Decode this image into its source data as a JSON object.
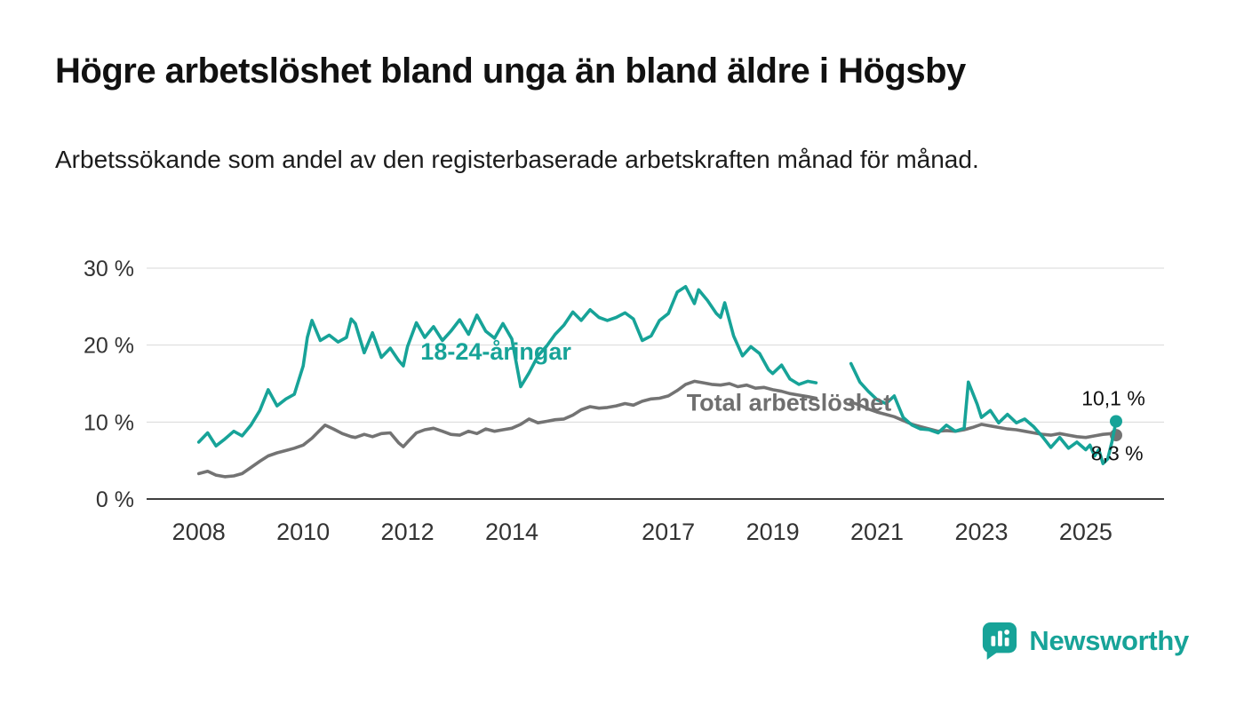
{
  "page": {
    "title": "Högre arbetslöshet bland unga än bland äldre i Högsby",
    "subtitle": "Arbetssökande som andel av den registerbaserade arbetskraften månad för månad."
  },
  "footer": {
    "brand": "Newsworthy",
    "brand_color": "#17a398"
  },
  "chart_data": {
    "type": "line",
    "title": "Högre arbetslöshet bland unga än bland äldre i Högsby",
    "subtitle": "Arbetssökande som andel av den registerbaserade arbetskraften månad för månad.",
    "x_domain": [
      2007.0,
      2026.5
    ],
    "y_domain": [
      0,
      30
    ],
    "grid": true,
    "y_ticks": [
      0,
      10,
      20,
      30
    ],
    "y_tick_labels": [
      "0 %",
      "10 %",
      "20 %",
      "30 %"
    ],
    "x_ticks": [
      2008,
      2010,
      2012,
      2014,
      2017,
      2019,
      2021,
      2023,
      2025
    ],
    "x_tick_labels": [
      "2008",
      "2010",
      "2012",
      "2014",
      "2017",
      "2019",
      "2021",
      "2023",
      "2025"
    ],
    "colors": {
      "youth": "#17a398",
      "total": "#737373",
      "grid": "#d9d9d9",
      "axis": "#3f3f3f",
      "tick_text": "#333333"
    },
    "series": [
      {
        "key": "total",
        "name": "Total arbetslöshet",
        "color": "#737373",
        "end_value_label": "8,3 %",
        "points": [
          [
            2008.0,
            3.3
          ],
          [
            2008.17,
            3.6
          ],
          [
            2008.33,
            3.1
          ],
          [
            2008.5,
            2.9
          ],
          [
            2008.67,
            3.0
          ],
          [
            2008.83,
            3.3
          ],
          [
            2009.0,
            4.1
          ],
          [
            2009.17,
            4.9
          ],
          [
            2009.33,
            5.6
          ],
          [
            2009.5,
            6.0
          ],
          [
            2009.67,
            6.3
          ],
          [
            2009.83,
            6.6
          ],
          [
            2010.0,
            7.0
          ],
          [
            2010.17,
            7.9
          ],
          [
            2010.33,
            9.0
          ],
          [
            2010.42,
            9.6
          ],
          [
            2010.58,
            9.1
          ],
          [
            2010.75,
            8.5
          ],
          [
            2010.92,
            8.1
          ],
          [
            2011.0,
            8.0
          ],
          [
            2011.17,
            8.4
          ],
          [
            2011.33,
            8.1
          ],
          [
            2011.5,
            8.5
          ],
          [
            2011.67,
            8.6
          ],
          [
            2011.83,
            7.3
          ],
          [
            2011.92,
            6.8
          ],
          [
            2012.0,
            7.4
          ],
          [
            2012.17,
            8.6
          ],
          [
            2012.33,
            9.0
          ],
          [
            2012.5,
            9.2
          ],
          [
            2012.67,
            8.8
          ],
          [
            2012.83,
            8.4
          ],
          [
            2013.0,
            8.3
          ],
          [
            2013.17,
            8.8
          ],
          [
            2013.33,
            8.5
          ],
          [
            2013.5,
            9.1
          ],
          [
            2013.67,
            8.8
          ],
          [
            2013.83,
            9.0
          ],
          [
            2014.0,
            9.2
          ],
          [
            2014.17,
            9.7
          ],
          [
            2014.33,
            10.4
          ],
          [
            2014.5,
            9.9
          ],
          [
            2014.67,
            10.1
          ],
          [
            2014.83,
            10.3
          ],
          [
            2015.0,
            10.4
          ],
          [
            2015.17,
            10.9
          ],
          [
            2015.33,
            11.6
          ],
          [
            2015.5,
            12.0
          ],
          [
            2015.67,
            11.8
          ],
          [
            2015.83,
            11.9
          ],
          [
            2016.0,
            12.1
          ],
          [
            2016.17,
            12.4
          ],
          [
            2016.33,
            12.2
          ],
          [
            2016.5,
            12.7
          ],
          [
            2016.67,
            13.0
          ],
          [
            2016.83,
            13.1
          ],
          [
            2017.0,
            13.4
          ],
          [
            2017.17,
            14.1
          ],
          [
            2017.33,
            14.9
          ],
          [
            2017.5,
            15.3
          ],
          [
            2017.67,
            15.1
          ],
          [
            2017.83,
            14.9
          ],
          [
            2018.0,
            14.8
          ],
          [
            2018.17,
            15.0
          ],
          [
            2018.33,
            14.6
          ],
          [
            2018.5,
            14.8
          ],
          [
            2018.67,
            14.4
          ],
          [
            2018.83,
            14.5
          ],
          [
            2019.0,
            14.2
          ],
          [
            2019.17,
            14.0
          ],
          [
            2019.33,
            13.7
          ],
          [
            2019.5,
            13.5
          ],
          [
            2019.67,
            13.3
          ],
          [
            2019.83,
            13.1
          ],
          [
            2020.0,
            null
          ],
          [
            2020.17,
            null
          ],
          [
            2020.33,
            null
          ],
          [
            2020.5,
            12.6
          ],
          [
            2020.67,
            12.2
          ],
          [
            2020.83,
            11.7
          ],
          [
            2021.0,
            11.3
          ],
          [
            2021.17,
            11.0
          ],
          [
            2021.33,
            10.7
          ],
          [
            2021.5,
            10.2
          ],
          [
            2021.67,
            9.7
          ],
          [
            2021.83,
            9.4
          ],
          [
            2022.0,
            9.1
          ],
          [
            2022.17,
            8.8
          ],
          [
            2022.33,
            8.9
          ],
          [
            2022.5,
            8.8
          ],
          [
            2022.67,
            9.0
          ],
          [
            2022.83,
            9.3
          ],
          [
            2023.0,
            9.7
          ],
          [
            2023.17,
            9.5
          ],
          [
            2023.33,
            9.3
          ],
          [
            2023.5,
            9.1
          ],
          [
            2023.67,
            9.0
          ],
          [
            2023.83,
            8.8
          ],
          [
            2024.0,
            8.6
          ],
          [
            2024.17,
            8.4
          ],
          [
            2024.33,
            8.3
          ],
          [
            2024.5,
            8.5
          ],
          [
            2024.67,
            8.3
          ],
          [
            2024.83,
            8.1
          ],
          [
            2025.0,
            8.0
          ],
          [
            2025.17,
            8.2
          ],
          [
            2025.33,
            8.4
          ],
          [
            2025.5,
            8.5
          ],
          [
            2025.58,
            8.3
          ]
        ]
      },
      {
        "key": "youth",
        "name": "18-24-åringar",
        "color": "#17a398",
        "end_value_label": "10,1 %",
        "points": [
          [
            2008.0,
            7.4
          ],
          [
            2008.17,
            8.6
          ],
          [
            2008.33,
            6.9
          ],
          [
            2008.5,
            7.8
          ],
          [
            2008.67,
            8.8
          ],
          [
            2008.83,
            8.2
          ],
          [
            2009.0,
            9.6
          ],
          [
            2009.17,
            11.5
          ],
          [
            2009.33,
            14.2
          ],
          [
            2009.5,
            12.1
          ],
          [
            2009.67,
            13.0
          ],
          [
            2009.83,
            13.6
          ],
          [
            2010.0,
            17.3
          ],
          [
            2010.08,
            21.0
          ],
          [
            2010.17,
            23.2
          ],
          [
            2010.33,
            20.6
          ],
          [
            2010.5,
            21.3
          ],
          [
            2010.67,
            20.4
          ],
          [
            2010.83,
            21.0
          ],
          [
            2010.92,
            23.4
          ],
          [
            2011.0,
            22.8
          ],
          [
            2011.17,
            19.0
          ],
          [
            2011.33,
            21.6
          ],
          [
            2011.5,
            18.4
          ],
          [
            2011.67,
            19.6
          ],
          [
            2011.83,
            18.0
          ],
          [
            2011.92,
            17.3
          ],
          [
            2012.0,
            19.8
          ],
          [
            2012.17,
            22.9
          ],
          [
            2012.33,
            21.0
          ],
          [
            2012.5,
            22.4
          ],
          [
            2012.67,
            20.6
          ],
          [
            2012.83,
            21.8
          ],
          [
            2013.0,
            23.3
          ],
          [
            2013.17,
            21.4
          ],
          [
            2013.33,
            23.9
          ],
          [
            2013.5,
            21.8
          ],
          [
            2013.67,
            20.9
          ],
          [
            2013.83,
            22.8
          ],
          [
            2014.0,
            20.8
          ],
          [
            2014.17,
            14.6
          ],
          [
            2014.33,
            16.4
          ],
          [
            2014.5,
            18.6
          ],
          [
            2014.67,
            19.9
          ],
          [
            2014.83,
            21.4
          ],
          [
            2015.0,
            22.6
          ],
          [
            2015.17,
            24.3
          ],
          [
            2015.33,
            23.2
          ],
          [
            2015.5,
            24.6
          ],
          [
            2015.67,
            23.6
          ],
          [
            2015.83,
            23.2
          ],
          [
            2016.0,
            23.6
          ],
          [
            2016.17,
            24.2
          ],
          [
            2016.33,
            23.4
          ],
          [
            2016.5,
            20.6
          ],
          [
            2016.67,
            21.2
          ],
          [
            2016.83,
            23.2
          ],
          [
            2017.0,
            24.1
          ],
          [
            2017.17,
            26.9
          ],
          [
            2017.33,
            27.6
          ],
          [
            2017.5,
            25.4
          ],
          [
            2017.58,
            27.2
          ],
          [
            2017.75,
            25.8
          ],
          [
            2017.92,
            24.1
          ],
          [
            2018.0,
            23.6
          ],
          [
            2018.08,
            25.5
          ],
          [
            2018.25,
            21.2
          ],
          [
            2018.42,
            18.6
          ],
          [
            2018.58,
            19.8
          ],
          [
            2018.75,
            18.9
          ],
          [
            2018.92,
            16.8
          ],
          [
            2019.0,
            16.3
          ],
          [
            2019.17,
            17.4
          ],
          [
            2019.33,
            15.6
          ],
          [
            2019.5,
            14.9
          ],
          [
            2019.67,
            15.3
          ],
          [
            2019.83,
            15.1
          ],
          [
            2020.0,
            null
          ],
          [
            2020.17,
            null
          ],
          [
            2020.33,
            null
          ],
          [
            2020.5,
            17.6
          ],
          [
            2020.67,
            15.2
          ],
          [
            2020.83,
            14.0
          ],
          [
            2021.0,
            12.9
          ],
          [
            2021.17,
            12.4
          ],
          [
            2021.33,
            13.4
          ],
          [
            2021.5,
            10.6
          ],
          [
            2021.67,
            9.6
          ],
          [
            2021.83,
            9.1
          ],
          [
            2022.0,
            9.0
          ],
          [
            2022.17,
            8.6
          ],
          [
            2022.33,
            9.6
          ],
          [
            2022.5,
            8.8
          ],
          [
            2022.67,
            9.2
          ],
          [
            2022.75,
            15.2
          ],
          [
            2022.92,
            12.3
          ],
          [
            2023.0,
            10.6
          ],
          [
            2023.17,
            11.5
          ],
          [
            2023.33,
            9.9
          ],
          [
            2023.5,
            11.0
          ],
          [
            2023.67,
            9.9
          ],
          [
            2023.83,
            10.4
          ],
          [
            2024.0,
            9.4
          ],
          [
            2024.17,
            8.1
          ],
          [
            2024.33,
            6.7
          ],
          [
            2024.5,
            8.0
          ],
          [
            2024.67,
            6.6
          ],
          [
            2024.83,
            7.4
          ],
          [
            2025.0,
            6.4
          ],
          [
            2025.08,
            7.0
          ],
          [
            2025.17,
            5.6
          ],
          [
            2025.25,
            6.4
          ],
          [
            2025.33,
            4.6
          ],
          [
            2025.42,
            5.2
          ],
          [
            2025.5,
            7.4
          ],
          [
            2025.58,
            10.1
          ]
        ]
      }
    ],
    "annotations": [
      {
        "name": "series-label-youth",
        "text": "18-24-åringar",
        "x": 2012.25,
        "y": 18.1,
        "color": "#17a398",
        "bold": true,
        "size": 27,
        "anchor": "start"
      },
      {
        "name": "series-label-total",
        "text": "Total arbetslöshet",
        "x": 2017.35,
        "y": 11.5,
        "color": "#6f6f6f",
        "bold": true,
        "size": 27,
        "anchor": "start"
      },
      {
        "name": "value-label-youth",
        "text": "10,1 %",
        "x": 2025.53,
        "y": 12.2,
        "color": "#111111",
        "bold": false,
        "size": 23,
        "anchor": "middle"
      },
      {
        "name": "value-label-total",
        "text": "8,3 %",
        "x": 2025.6,
        "y": 5.0,
        "color": "#111111",
        "bold": false,
        "size": 23,
        "anchor": "middle"
      }
    ],
    "legend_position": "inline-labels"
  }
}
